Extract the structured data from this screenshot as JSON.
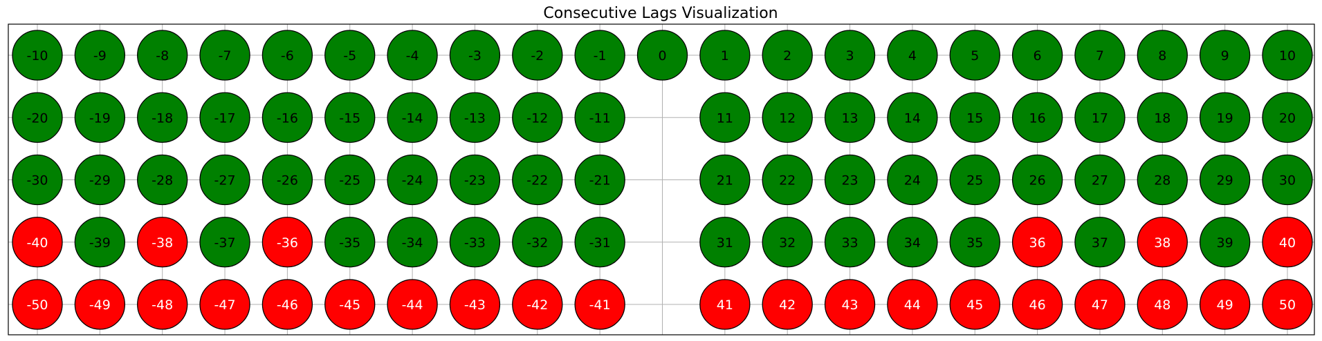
{
  "chart_data": {
    "type": "scatter",
    "title": "Consecutive Lags Visualization",
    "xlabel": "",
    "ylabel": "",
    "grid": true,
    "columns": [
      -10,
      -9,
      -8,
      -7,
      -6,
      -5,
      -4,
      -3,
      -2,
      -1,
      0,
      1,
      2,
      3,
      4,
      5,
      6,
      7,
      8,
      9,
      10
    ],
    "rows": [
      {
        "lags": [
          -10,
          -9,
          -8,
          -7,
          -6,
          -5,
          -4,
          -3,
          -2,
          -1,
          0,
          1,
          2,
          3,
          4,
          5,
          6,
          7,
          8,
          9,
          10
        ],
        "status": [
          "green",
          "green",
          "green",
          "green",
          "green",
          "green",
          "green",
          "green",
          "green",
          "green",
          "green",
          "green",
          "green",
          "green",
          "green",
          "green",
          "green",
          "green",
          "green",
          "green",
          "green"
        ]
      },
      {
        "lags": [
          -20,
          -19,
          -18,
          -17,
          -16,
          -15,
          -14,
          -13,
          -12,
          -11,
          null,
          11,
          12,
          13,
          14,
          15,
          16,
          17,
          18,
          19,
          20
        ],
        "status": [
          "green",
          "green",
          "green",
          "green",
          "green",
          "green",
          "green",
          "green",
          "green",
          "green",
          null,
          "green",
          "green",
          "green",
          "green",
          "green",
          "green",
          "green",
          "green",
          "green",
          "green"
        ]
      },
      {
        "lags": [
          -30,
          -29,
          -28,
          -27,
          -26,
          -25,
          -24,
          -23,
          -22,
          -21,
          null,
          21,
          22,
          23,
          24,
          25,
          26,
          27,
          28,
          29,
          30
        ],
        "status": [
          "green",
          "green",
          "green",
          "green",
          "green",
          "green",
          "green",
          "green",
          "green",
          "green",
          null,
          "green",
          "green",
          "green",
          "green",
          "green",
          "green",
          "green",
          "green",
          "green",
          "green"
        ]
      },
      {
        "lags": [
          -40,
          -39,
          -38,
          -37,
          -36,
          -35,
          -34,
          -33,
          -32,
          -31,
          null,
          31,
          32,
          33,
          34,
          35,
          36,
          37,
          38,
          39,
          40
        ],
        "status": [
          "red",
          "green",
          "red",
          "green",
          "red",
          "green",
          "green",
          "green",
          "green",
          "green",
          null,
          "green",
          "green",
          "green",
          "green",
          "green",
          "red",
          "green",
          "red",
          "green",
          "red"
        ]
      },
      {
        "lags": [
          -50,
          -49,
          -48,
          -47,
          -46,
          -45,
          -44,
          -43,
          -42,
          -41,
          null,
          41,
          42,
          43,
          44,
          45,
          46,
          47,
          48,
          49,
          50
        ],
        "status": [
          "red",
          "red",
          "red",
          "red",
          "red",
          "red",
          "red",
          "red",
          "red",
          "red",
          null,
          "red",
          "red",
          "red",
          "red",
          "red",
          "red",
          "red",
          "red",
          "red",
          "red"
        ]
      }
    ],
    "colors": {
      "green": "#008000",
      "red": "#ff0000",
      "edge": "#000000",
      "grid": "#b0b0b0"
    },
    "label_colors": {
      "green": "#000000",
      "red": "#ffffff"
    }
  }
}
